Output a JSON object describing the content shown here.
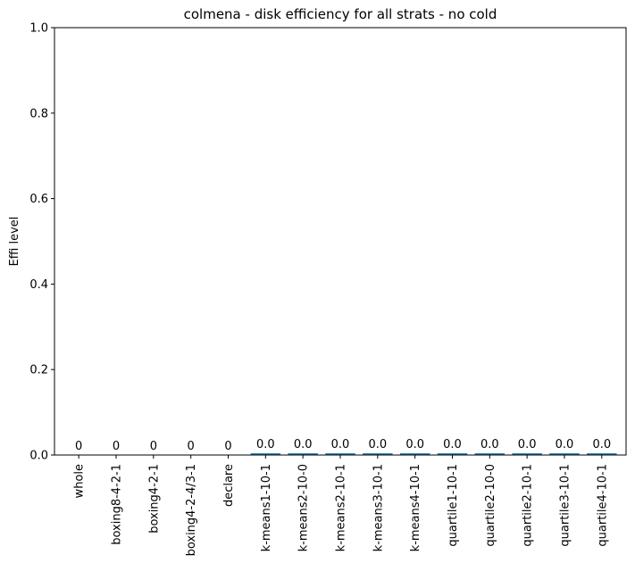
{
  "chart_data": {
    "type": "bar",
    "title": "colmena - disk efficiency for all strats - no cold",
    "xlabel": "",
    "ylabel": "Effi level",
    "ylim": [
      0,
      1.0
    ],
    "yticks": [
      "0.0",
      "0.2",
      "0.4",
      "0.6",
      "0.8",
      "1.0"
    ],
    "categories": [
      "whole",
      "boxing8-4-2-1",
      "boxing4-2-1",
      "boxing4-2-4/3-1",
      "declare",
      "k-means1-10-1",
      "k-means2-10-0",
      "k-means2-10-1",
      "k-means3-10-1",
      "k-means4-10-1",
      "quartile1-10-1",
      "quartile2-10-0",
      "quartile2-10-1",
      "quartile3-10-1",
      "quartile4-10-1"
    ],
    "values": [
      0,
      0,
      0,
      0,
      0,
      0.004,
      0.004,
      0.004,
      0.004,
      0.004,
      0.004,
      0.004,
      0.004,
      0.004,
      0.004
    ],
    "data_labels": [
      "0",
      "0",
      "0",
      "0",
      "0",
      "0.0",
      "0.0",
      "0.0",
      "0.0",
      "0.0",
      "0.0",
      "0.0",
      "0.0",
      "0.0",
      "0.0"
    ],
    "bar_color": "#1f77b4",
    "grid": false,
    "legend": "none"
  }
}
